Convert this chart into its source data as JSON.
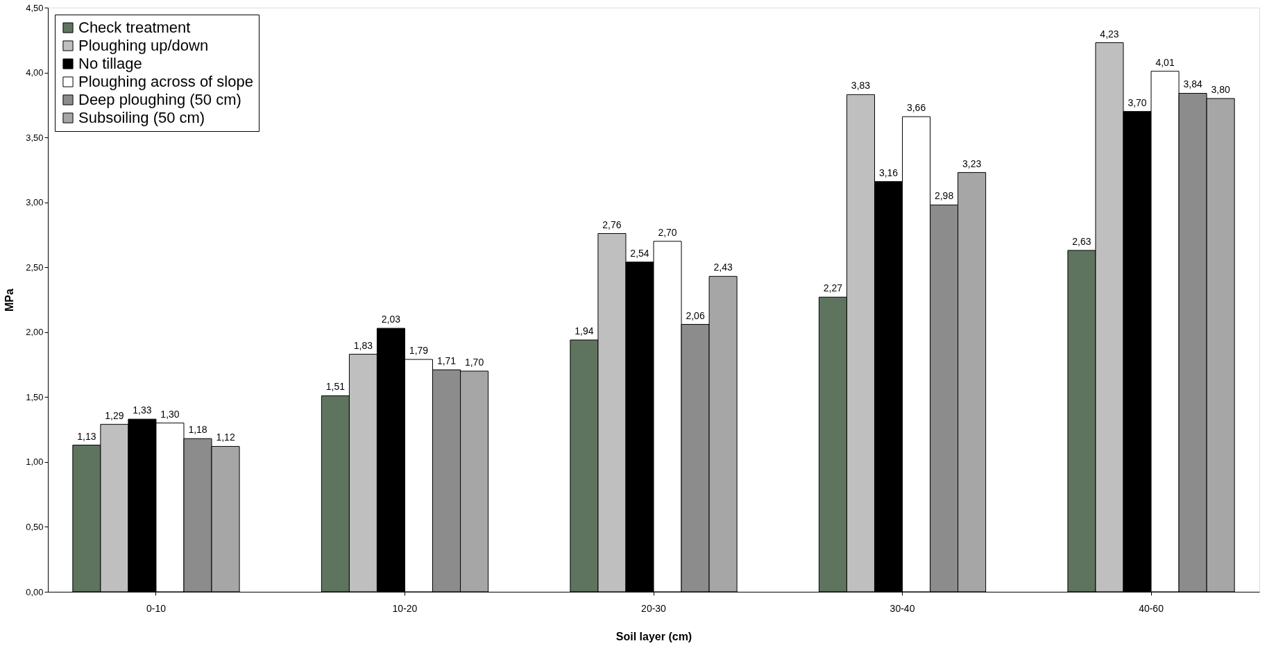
{
  "chart_data": {
    "type": "bar",
    "xlabel": "Soil layer (cm)",
    "ylabel": "MPa",
    "categories": [
      "0-10",
      "10-20",
      "20-30",
      "30-40",
      "40-60"
    ],
    "series": [
      {
        "name": "Check treatment",
        "color": "#5e745e",
        "values": [
          1.13,
          1.51,
          1.94,
          2.27,
          2.63
        ],
        "value_labels": [
          "1,13",
          "1,51",
          "1,94",
          "2,27",
          "2,63"
        ]
      },
      {
        "name": "Ploughing up/down",
        "color": "#bfbfbf",
        "values": [
          1.29,
          1.83,
          2.76,
          3.83,
          4.23
        ],
        "value_labels": [
          "1,29",
          "1,83",
          "2,76",
          "3,83",
          "4,23"
        ]
      },
      {
        "name": "No tillage",
        "color": "#000000",
        "values": [
          1.33,
          2.03,
          2.54,
          3.16,
          3.7
        ],
        "value_labels": [
          "1,33",
          "2,03",
          "2,54",
          "3,16",
          "3,70"
        ]
      },
      {
        "name": "Ploughing across of slope",
        "color": "#ffffff",
        "values": [
          1.3,
          1.79,
          2.7,
          3.66,
          4.01
        ],
        "value_labels": [
          "1,30",
          "1,79",
          "2,70",
          "3,66",
          "4,01"
        ]
      },
      {
        "name": "Deep ploughing (50 cm)",
        "color": "#8c8c8c",
        "values": [
          1.18,
          1.71,
          2.06,
          2.98,
          3.84
        ],
        "value_labels": [
          "1,18",
          "1,71",
          "2,06",
          "2,98",
          "3,84"
        ]
      },
      {
        "name": "Subsoiling (50 cm)",
        "color": "#a6a6a6",
        "values": [
          1.12,
          1.7,
          2.43,
          3.23,
          3.8
        ],
        "value_labels": [
          "1,12",
          "1,70",
          "2,43",
          "3,23",
          "3,80"
        ]
      }
    ],
    "ylim": [
      0,
      4.5
    ],
    "yticks": [
      {
        "value": 0,
        "label": "0,00"
      },
      {
        "value": 0.5,
        "label": "0,50"
      },
      {
        "value": 1,
        "label": "1,00"
      },
      {
        "value": 1.5,
        "label": "1,50"
      },
      {
        "value": 2,
        "label": "2,00"
      },
      {
        "value": 2.5,
        "label": "2,50"
      },
      {
        "value": 3,
        "label": "3,00"
      },
      {
        "value": 3.5,
        "label": "3,50"
      },
      {
        "value": 4,
        "label": "4,00"
      },
      {
        "value": 4.5,
        "label": "4,50"
      }
    ],
    "grid": false,
    "legend": "top left"
  }
}
